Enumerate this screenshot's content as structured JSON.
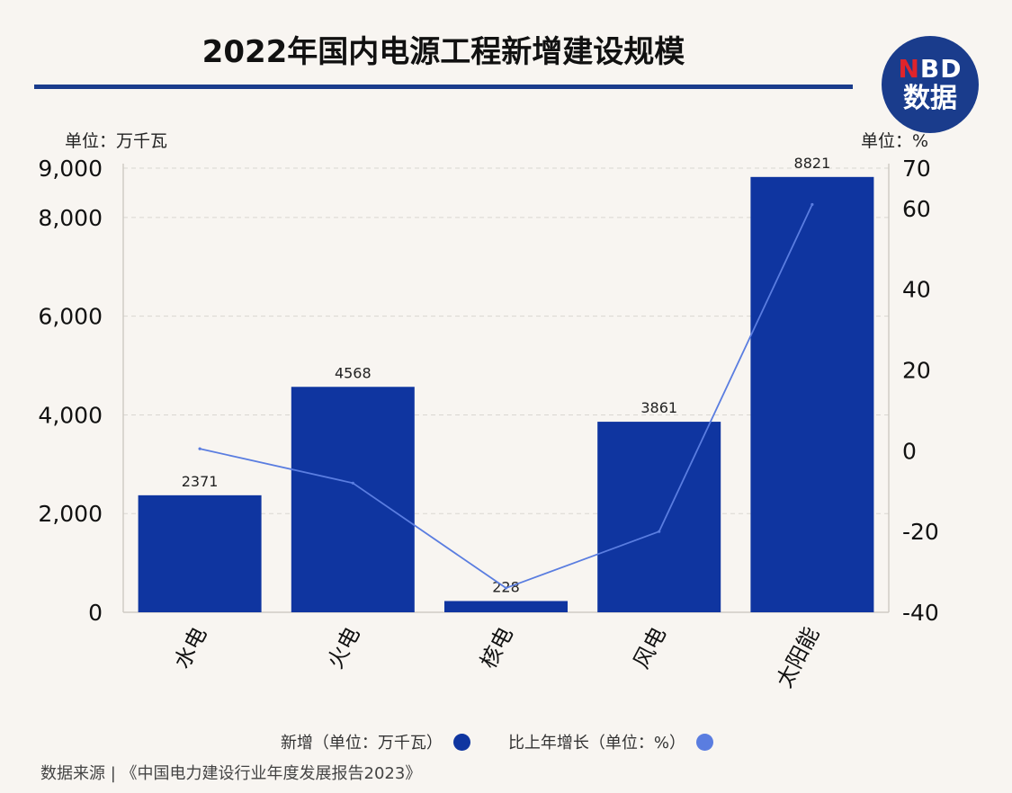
{
  "title": "2022年国内电源工程新增建设规模",
  "logo": {
    "line1_n": "N",
    "line1_rest": "BD",
    "line2": "数据"
  },
  "unit_left": "单位：万千瓦",
  "unit_right": "单位：%",
  "legend": [
    {
      "label": "新增（单位：万千瓦）",
      "color": "#0f35a0"
    },
    {
      "label": "比上年增长（单位：%）",
      "color": "#5a7de0"
    }
  ],
  "source": "数据来源 | 《中国电力建设行业年度发展报告2023》",
  "chart_data": {
    "type": "bar",
    "categories": [
      "水电",
      "火电",
      "核电",
      "风电",
      "太阳能"
    ],
    "series": [
      {
        "name": "新增（单位：万千瓦）",
        "type": "bar",
        "axis": "left",
        "values": [
          2371,
          4568,
          228,
          3861,
          8821
        ],
        "color": "#0f35a0"
      },
      {
        "name": "比上年增长（单位：%）",
        "type": "line",
        "axis": "right",
        "values": [
          0.5,
          -8,
          -34,
          -20,
          61
        ],
        "color": "#5a7de0"
      }
    ],
    "left_axis": {
      "ylim": [
        0,
        9000
      ],
      "ticks": [
        0,
        2000,
        4000,
        6000,
        8000,
        9000
      ],
      "tick_labels": [
        "0",
        "2,000",
        "4,000",
        "6,000",
        "8,000",
        "9,000"
      ]
    },
    "right_axis": {
      "ylim": [
        -40,
        70
      ],
      "ticks": [
        -40,
        -20,
        0,
        20,
        40,
        60,
        70
      ],
      "tick_labels": [
        "-40",
        "-20",
        "0",
        "20",
        "40",
        "60",
        "70"
      ]
    },
    "grid": true,
    "legend_position": "bottom"
  }
}
